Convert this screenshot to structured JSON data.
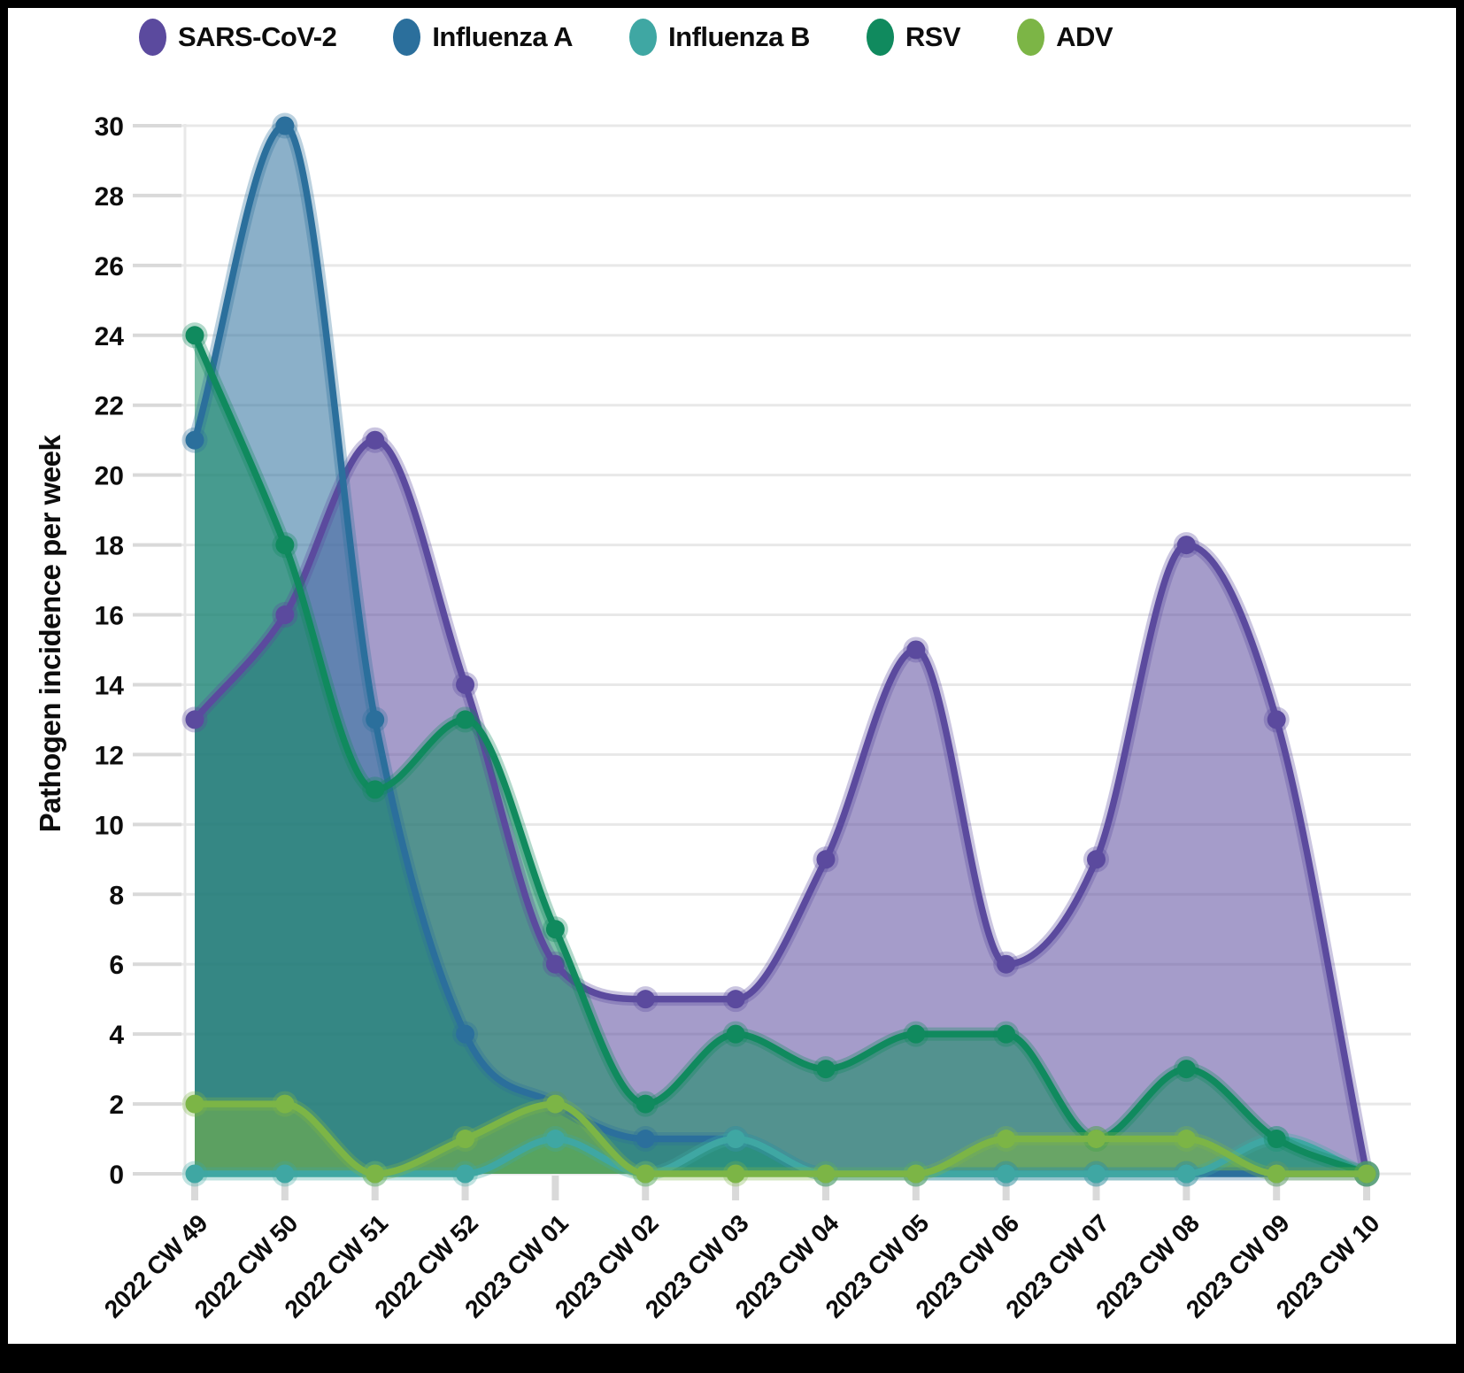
{
  "legend": {
    "items": [
      {
        "label": "SARS-CoV-2",
        "color": "#5b4a9e"
      },
      {
        "label": "Influenza A",
        "color": "#2b6f9c"
      },
      {
        "label": "Influenza B",
        "color": "#3fa7a3"
      },
      {
        "label": "RSV",
        "color": "#108a5e"
      },
      {
        "label": "ADV",
        "color": "#7cb546"
      }
    ]
  },
  "y_axis": {
    "title": "Pathogen incidence per week",
    "tick_values": [
      0,
      2,
      4,
      6,
      8,
      10,
      12,
      14,
      16,
      18,
      20,
      22,
      24,
      26,
      28,
      30
    ]
  },
  "chart_data": {
    "type": "area",
    "title": "",
    "xlabel": "",
    "ylabel": "Pathogen incidence per week",
    "ylim": [
      0,
      30
    ],
    "y_tick_step": 2,
    "grid": "horizontal",
    "legend_position": "top",
    "fill_opacity": 0.55,
    "line_smoothing": "monotone",
    "categories": [
      "2022 CW 49",
      "2022 CW 50",
      "2022 CW 51",
      "2022 CW 52",
      "2023 CW 01",
      "2023 CW 02",
      "2023 CW 03",
      "2023 CW 04",
      "2023 CW 05",
      "2023 CW 06",
      "2023 CW 07",
      "2023 CW 08",
      "2023 CW 09",
      "2023 CW 10"
    ],
    "series": [
      {
        "name": "SARS-CoV-2",
        "color": "#5b4a9e",
        "values": [
          13,
          16,
          21,
          14,
          6,
          5,
          5,
          9,
          15,
          6,
          9,
          18,
          13,
          0
        ]
      },
      {
        "name": "Influenza A",
        "color": "#2b6f9c",
        "values": [
          21,
          30,
          13,
          4,
          2,
          1,
          1,
          0,
          0,
          0,
          0,
          0,
          0,
          0
        ]
      },
      {
        "name": "Influenza B",
        "color": "#3fa7a3",
        "values": [
          0,
          0,
          0,
          0,
          1,
          0,
          1,
          0,
          0,
          0,
          0,
          0,
          1,
          0
        ]
      },
      {
        "name": "RSV",
        "color": "#108a5e",
        "values": [
          24,
          18,
          11,
          13,
          7,
          2,
          4,
          3,
          4,
          4,
          1,
          3,
          1,
          0
        ]
      },
      {
        "name": "ADV",
        "color": "#7cb546",
        "values": [
          2,
          2,
          0,
          1,
          2,
          0,
          0,
          0,
          0,
          1,
          1,
          1,
          0,
          0
        ]
      }
    ]
  },
  "styles": {
    "background": "#ffffff",
    "frame_color": "#000000",
    "grid_color": "#e8e8e8",
    "tick_color": "#d9d9d9",
    "text_color": "#0d0d0d"
  }
}
